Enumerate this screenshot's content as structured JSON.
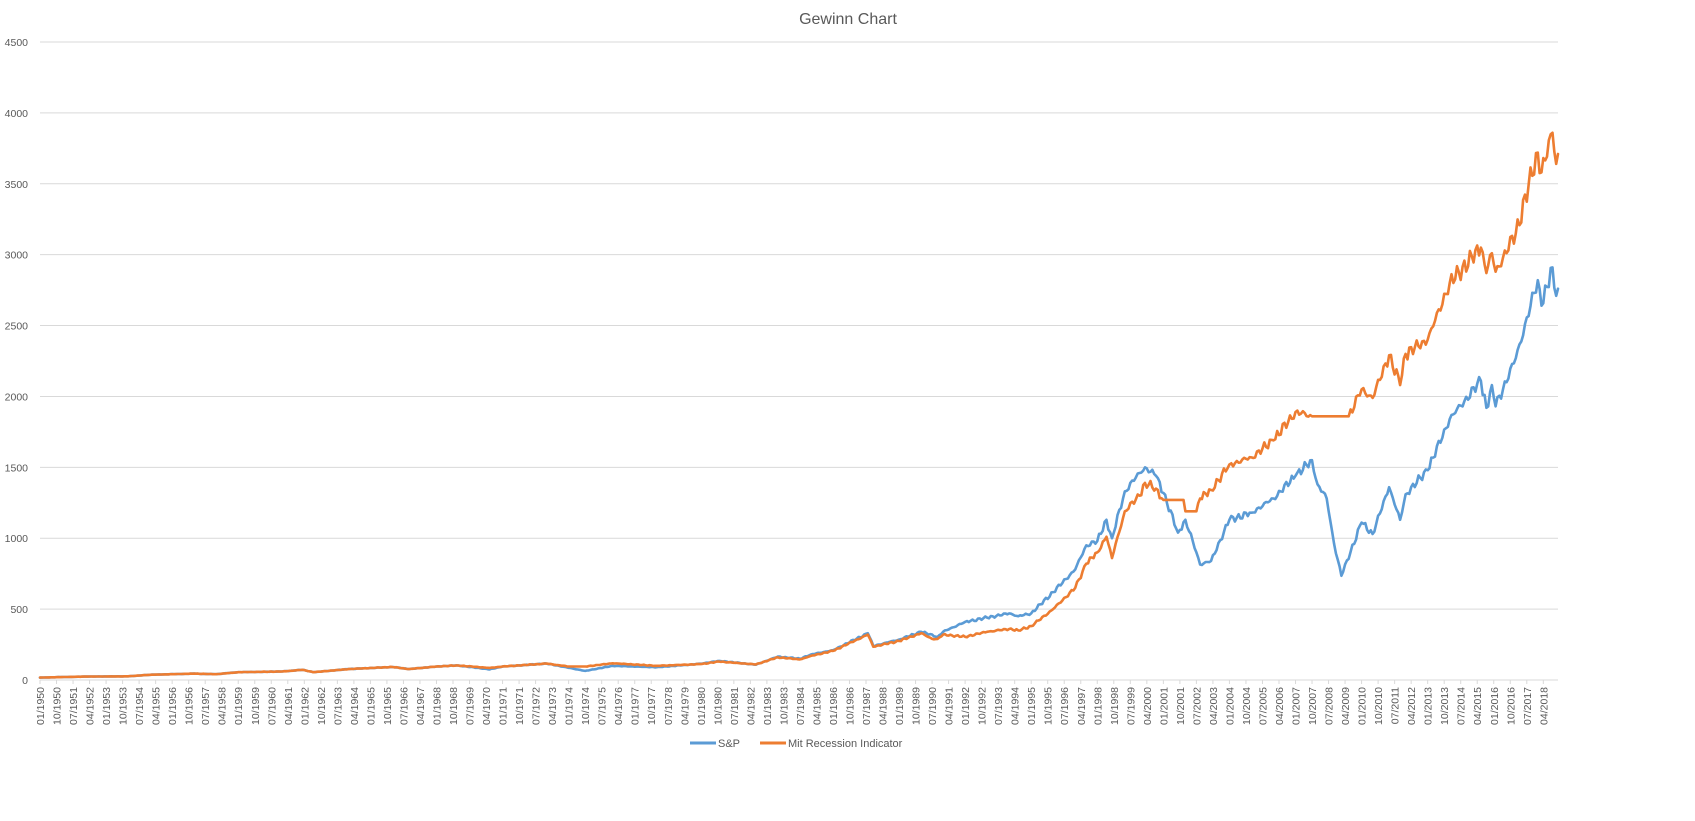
{
  "chart_data": {
    "type": "line",
    "title": "Gewinn Chart",
    "xlabel": "",
    "ylabel": "",
    "ylim": [
      0,
      4500
    ],
    "yticks": [
      0,
      500,
      1000,
      1500,
      2000,
      2500,
      3000,
      3500,
      4000,
      4500
    ],
    "xlim": [
      "01/1950",
      "12/2018"
    ],
    "xticks": [
      "01/1950",
      "10/1950",
      "07/1951",
      "04/1952",
      "01/1953",
      "10/1953",
      "07/1954",
      "04/1955",
      "01/1956",
      "10/1956",
      "07/1957",
      "04/1958",
      "01/1959",
      "10/1959",
      "07/1960",
      "04/1961",
      "01/1962",
      "10/1962",
      "07/1963",
      "04/1964",
      "01/1965",
      "10/1965",
      "07/1966",
      "04/1967",
      "01/1968",
      "10/1968",
      "07/1969",
      "04/1970",
      "01/1971",
      "10/1971",
      "07/1972",
      "04/1973",
      "01/1974",
      "10/1974",
      "07/1975",
      "04/1976",
      "01/1977",
      "10/1977",
      "07/1978",
      "04/1979",
      "01/1980",
      "10/1980",
      "07/1981",
      "04/1982",
      "01/1983",
      "10/1983",
      "07/1984",
      "04/1985",
      "01/1986",
      "10/1986",
      "07/1987",
      "04/1988",
      "01/1989",
      "10/1989",
      "07/1990",
      "04/1991",
      "01/1992",
      "10/1992",
      "07/1993",
      "04/1994",
      "01/1995",
      "10/1995",
      "07/1996",
      "04/1997",
      "01/1998",
      "10/1998",
      "07/1999",
      "04/2000",
      "01/2001",
      "10/2001",
      "07/2002",
      "04/2003",
      "01/2004",
      "10/2004",
      "07/2005",
      "04/2006",
      "01/2007",
      "10/2007",
      "07/2008",
      "04/2009",
      "01/2010",
      "10/2010",
      "07/2011",
      "04/2012",
      "01/2013",
      "10/2013",
      "07/2014",
      "04/2015",
      "01/2016",
      "10/2016",
      "07/2017",
      "04/2018"
    ],
    "grid": true,
    "legend": "bottom",
    "series": [
      {
        "name": "S&P",
        "color": "#5B9BD5",
        "points": [
          [
            "01/1950",
            17
          ],
          [
            "01/1952",
            24
          ],
          [
            "01/1954",
            26
          ],
          [
            "01/1955",
            37
          ],
          [
            "01/1957",
            45
          ],
          [
            "01/1958",
            41
          ],
          [
            "01/1959",
            55
          ],
          [
            "01/1961",
            60
          ],
          [
            "12/1961",
            72
          ],
          [
            "06/1962",
            55
          ],
          [
            "01/1964",
            77
          ],
          [
            "01/1966",
            92
          ],
          [
            "10/1966",
            77
          ],
          [
            "01/1968",
            95
          ],
          [
            "12/1968",
            103
          ],
          [
            "06/1970",
            75
          ],
          [
            "01/1971",
            95
          ],
          [
            "01/1973",
            116
          ],
          [
            "10/1974",
            64
          ],
          [
            "01/1976",
            100
          ],
          [
            "01/1978",
            90
          ],
          [
            "01/1980",
            115
          ],
          [
            "11/1980",
            135
          ],
          [
            "07/1982",
            108
          ],
          [
            "07/1983",
            165
          ],
          [
            "07/1984",
            150
          ],
          [
            "01/1985",
            180
          ],
          [
            "01/1986",
            210
          ],
          [
            "08/1987",
            330
          ],
          [
            "11/1987",
            240
          ],
          [
            "01/1989",
            285
          ],
          [
            "01/1990",
            340
          ],
          [
            "10/1990",
            305
          ],
          [
            "01/1991",
            340
          ],
          [
            "01/1992",
            410
          ],
          [
            "01/1993",
            440
          ],
          [
            "01/1994",
            470
          ],
          [
            "06/1994",
            450
          ],
          [
            "01/1995",
            470
          ],
          [
            "01/1996",
            620
          ],
          [
            "01/1997",
            780
          ],
          [
            "07/1997",
            950
          ],
          [
            "01/1998",
            980
          ],
          [
            "06/1998",
            1130
          ],
          [
            "09/1998",
            1000
          ],
          [
            "04/1999",
            1330
          ],
          [
            "12/1999",
            1460
          ],
          [
            "03/2000",
            1500
          ],
          [
            "09/2000",
            1440
          ],
          [
            "01/2001",
            1320
          ],
          [
            "09/2001",
            1040
          ],
          [
            "01/2002",
            1130
          ],
          [
            "07/2002",
            900
          ],
          [
            "09/2002",
            815
          ],
          [
            "03/2003",
            840
          ],
          [
            "01/2004",
            1130
          ],
          [
            "01/2005",
            1180
          ],
          [
            "01/2006",
            1280
          ],
          [
            "01/2007",
            1440
          ],
          [
            "10/2007",
            1550
          ],
          [
            "01/2008",
            1380
          ],
          [
            "06/2008",
            1280
          ],
          [
            "10/2008",
            960
          ],
          [
            "02/2009",
            735
          ],
          [
            "01/2010",
            1110
          ],
          [
            "07/2010",
            1030
          ],
          [
            "04/2011",
            1360
          ],
          [
            "10/2011",
            1130
          ],
          [
            "01/2012",
            1310
          ],
          [
            "01/2013",
            1480
          ],
          [
            "01/2014",
            1840
          ],
          [
            "06/2015",
            2110
          ],
          [
            "09/2015",
            1920
          ],
          [
            "12/2015",
            2080
          ],
          [
            "02/2016",
            1930
          ],
          [
            "01/2017",
            2270
          ],
          [
            "01/2018",
            2820
          ],
          [
            "03/2018",
            2640
          ],
          [
            "09/2018",
            2910
          ],
          [
            "11/2018",
            2710
          ],
          [
            "12/2018",
            2760
          ]
        ]
      },
      {
        "name": "Mit Recession Indicator",
        "color": "#ED7D31",
        "points": [
          [
            "01/1950",
            17
          ],
          [
            "01/1952",
            24
          ],
          [
            "01/1954",
            26
          ],
          [
            "01/1955",
            37
          ],
          [
            "01/1957",
            45
          ],
          [
            "01/1958",
            41
          ],
          [
            "01/1959",
            55
          ],
          [
            "01/1961",
            60
          ],
          [
            "12/1961",
            72
          ],
          [
            "06/1962",
            55
          ],
          [
            "01/1964",
            77
          ],
          [
            "01/1966",
            92
          ],
          [
            "10/1966",
            77
          ],
          [
            "01/1968",
            95
          ],
          [
            "12/1968",
            103
          ],
          [
            "06/1970",
            85
          ],
          [
            "01/1971",
            95
          ],
          [
            "01/1973",
            116
          ],
          [
            "01/1974",
            95
          ],
          [
            "10/1974",
            95
          ],
          [
            "01/1976",
            118
          ],
          [
            "01/1978",
            100
          ],
          [
            "01/1980",
            112
          ],
          [
            "11/1980",
            130
          ],
          [
            "07/1982",
            110
          ],
          [
            "07/1983",
            160
          ],
          [
            "07/1984",
            145
          ],
          [
            "01/1985",
            170
          ],
          [
            "01/1986",
            205
          ],
          [
            "08/1987",
            320
          ],
          [
            "11/1987",
            235
          ],
          [
            "01/1989",
            275
          ],
          [
            "01/1990",
            330
          ],
          [
            "07/1990",
            290
          ],
          [
            "10/1990",
            290
          ],
          [
            "01/1991",
            320
          ],
          [
            "01/1992",
            305
          ],
          [
            "01/1993",
            340
          ],
          [
            "01/1994",
            360
          ],
          [
            "06/1994",
            350
          ],
          [
            "01/1995",
            380
          ],
          [
            "01/1996",
            500
          ],
          [
            "01/1997",
            650
          ],
          [
            "07/1997",
            820
          ],
          [
            "01/1998",
            900
          ],
          [
            "06/1998",
            1010
          ],
          [
            "09/1998",
            860
          ],
          [
            "04/1999",
            1190
          ],
          [
            "12/1999",
            1300
          ],
          [
            "03/2000",
            1390
          ],
          [
            "09/2000",
            1350
          ],
          [
            "01/2001",
            1270
          ],
          [
            "12/2001",
            1270
          ],
          [
            "01/2002",
            1190
          ],
          [
            "07/2002",
            1190
          ],
          [
            "09/2002",
            1280
          ],
          [
            "03/2003",
            1340
          ],
          [
            "01/2004",
            1520
          ],
          [
            "01/2005",
            1570
          ],
          [
            "01/2006",
            1690
          ],
          [
            "01/2007",
            1890
          ],
          [
            "10/2007",
            1860
          ],
          [
            "12/2008",
            1860
          ],
          [
            "06/2009",
            1860
          ],
          [
            "01/2010",
            2050
          ],
          [
            "07/2010",
            1990
          ],
          [
            "04/2011",
            2290
          ],
          [
            "10/2011",
            2080
          ],
          [
            "01/2012",
            2300
          ],
          [
            "01/2013",
            2400
          ],
          [
            "01/2014",
            2800
          ],
          [
            "06/2015",
            3050
          ],
          [
            "09/2015",
            2870
          ],
          [
            "12/2015",
            3010
          ],
          [
            "02/2016",
            2880
          ],
          [
            "01/2017",
            3150
          ],
          [
            "01/2018",
            3720
          ],
          [
            "03/2018",
            3580
          ],
          [
            "09/2018",
            3860
          ],
          [
            "11/2018",
            3640
          ],
          [
            "12/2018",
            3710
          ]
        ]
      }
    ]
  }
}
